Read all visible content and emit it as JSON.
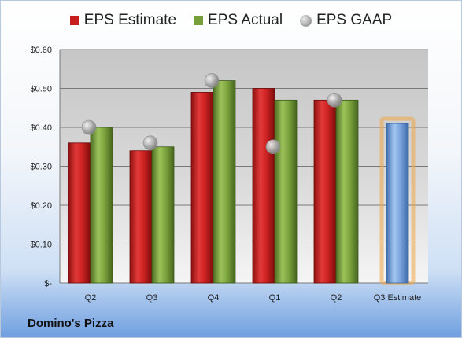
{
  "chart_data": {
    "type": "bar",
    "categories": [
      "Q2",
      "Q3",
      "Q4",
      "Q1",
      "Q2",
      "Q3 Estimate"
    ],
    "series": [
      {
        "name": "EPS Estimate",
        "values": [
          0.36,
          0.34,
          0.49,
          0.5,
          0.47,
          null
        ],
        "color": "#c81d1d"
      },
      {
        "name": "EPS Actual",
        "values": [
          0.4,
          0.35,
          0.52,
          0.47,
          0.47,
          null
        ],
        "color": "#77a03a"
      },
      {
        "name": "EPS GAAP",
        "values": [
          0.4,
          0.36,
          0.52,
          0.35,
          0.47,
          null
        ],
        "color": "#9b9b9b"
      }
    ],
    "forecast": {
      "category": "Q3 Estimate",
      "value": 0.41,
      "color": "#6f9fdc",
      "highlight": "#f0a445"
    },
    "ylim": [
      0,
      0.6
    ],
    "yticks": [
      0,
      0.1,
      0.2,
      0.3,
      0.4,
      0.5,
      0.6
    ],
    "ytick_labels": [
      "$-",
      "$0.10",
      "$0.20",
      "$0.30",
      "$0.40",
      "$0.50",
      "$0.60"
    ],
    "legend_position": "top",
    "grid": true
  },
  "legend": {
    "estimate": "EPS Estimate",
    "actual": "EPS Actual",
    "gaap": "EPS GAAP"
  },
  "company": "Domino's Pizza"
}
